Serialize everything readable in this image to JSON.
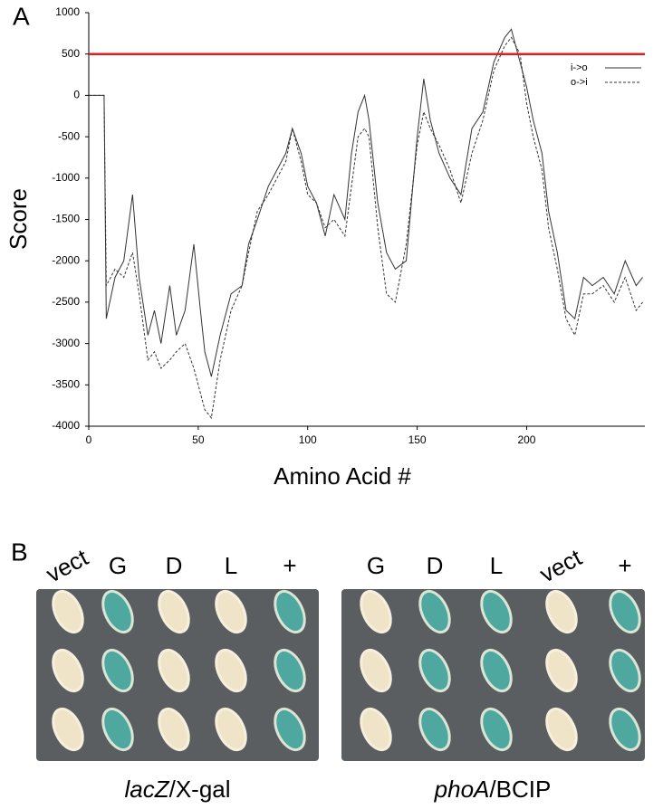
{
  "panel_labels": [
    "A",
    "B"
  ],
  "chart_data": {
    "type": "line",
    "x_label": "Amino Acid #",
    "y_label": "Score",
    "xlim": [
      0,
      254
    ],
    "xticks": [
      0,
      50,
      100,
      150,
      200
    ],
    "ylim": [
      -4000,
      1000
    ],
    "yticks": [
      1000,
      500,
      0,
      -500,
      -1000,
      -1500,
      -2000,
      -2500,
      -3000,
      -3500,
      -4000
    ],
    "threshold": 500,
    "threshold_color": "#e02020",
    "legend": "upper right",
    "x": [
      0,
      7,
      8,
      12,
      16,
      20,
      23,
      27,
      30,
      33,
      37,
      40,
      44,
      48,
      51,
      53,
      56,
      60,
      65,
      70,
      73,
      77,
      82,
      86,
      90,
      93,
      97,
      100,
      104,
      108,
      112,
      117,
      120,
      123,
      126,
      128,
      132,
      136,
      140,
      145,
      150,
      153,
      156,
      160,
      165,
      170,
      175,
      180,
      185,
      190,
      193,
      197,
      200,
      203,
      207,
      210,
      214,
      218,
      222,
      226,
      230,
      235,
      240,
      245,
      250,
      253
    ],
    "series": [
      {
        "name": "i->o",
        "color": "#333333",
        "dashed": false,
        "values": [
          0,
          0,
          -2700,
          -2200,
          -2000,
          -1200,
          -2200,
          -2900,
          -2600,
          -3000,
          -2300,
          -2900,
          -2600,
          -1800,
          -2600,
          -3100,
          -3400,
          -2900,
          -2400,
          -2300,
          -1800,
          -1500,
          -1100,
          -900,
          -700,
          -400,
          -700,
          -1100,
          -1300,
          -1700,
          -1200,
          -1500,
          -700,
          -200,
          0,
          -300,
          -1300,
          -1900,
          -2100,
          -2000,
          -500,
          200,
          -300,
          -700,
          -1000,
          -1200,
          -400,
          -200,
          400,
          700,
          800,
          400,
          100,
          -300,
          -700,
          -1400,
          -1900,
          -2600,
          -2700,
          -2200,
          -2300,
          -2200,
          -2400,
          -2000,
          -2300,
          -2200
        ]
      },
      {
        "name": "o->i",
        "color": "#333333",
        "dashed": true,
        "values": [
          0,
          0,
          -2300,
          -2100,
          -2200,
          -1900,
          -2400,
          -3200,
          -3100,
          -3300,
          -3200,
          -3100,
          -3000,
          -3300,
          -3600,
          -3800,
          -3900,
          -3200,
          -2600,
          -2300,
          -1900,
          -1400,
          -1200,
          -1000,
          -800,
          -400,
          -800,
          -1200,
          -1300,
          -1600,
          -1500,
          -1700,
          -1100,
          -500,
          -400,
          -500,
          -1600,
          -2400,
          -2500,
          -1800,
          -600,
          -200,
          -400,
          -600,
          -900,
          -1300,
          -700,
          -300,
          300,
          600,
          700,
          500,
          -100,
          -500,
          -900,
          -1600,
          -2100,
          -2700,
          -2900,
          -2400,
          -2400,
          -2300,
          -2500,
          -2200,
          -2600,
          -2500
        ]
      }
    ]
  },
  "plates": [
    {
      "columns": [
        "vect",
        "G",
        "D",
        "L",
        "+"
      ],
      "caption": [
        "lacZ",
        "/X-gal"
      ]
    },
    {
      "columns": [
        "G",
        "D",
        "L",
        "vect",
        "+"
      ],
      "caption": [
        "phoA",
        "/BCIP"
      ]
    }
  ]
}
